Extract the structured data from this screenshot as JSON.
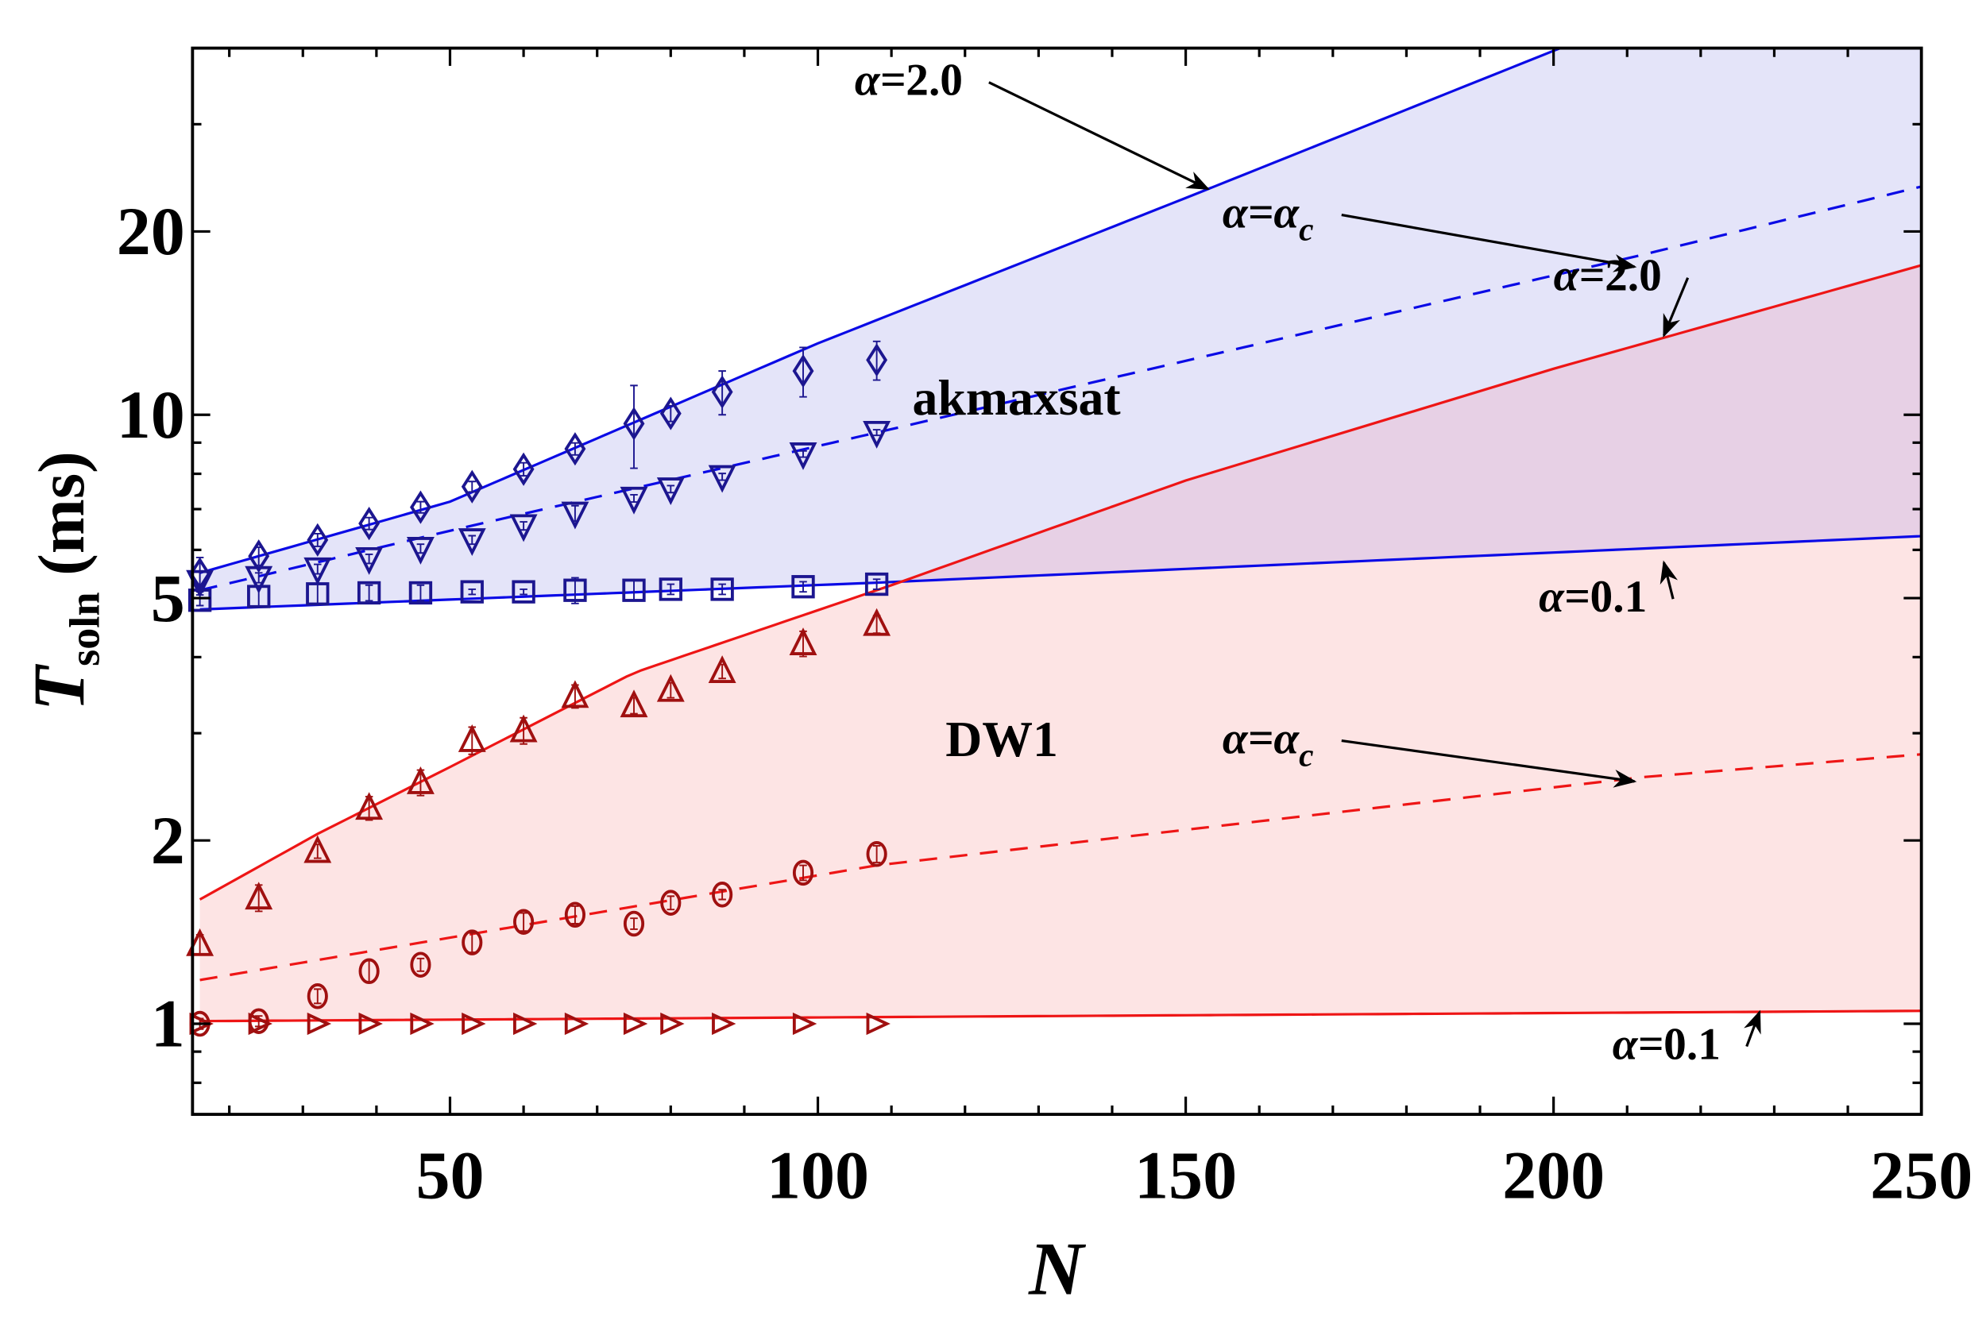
{
  "chart_data": {
    "type": "scatter",
    "xlabel": "N",
    "ylabel_main": "T",
    "ylabel_sub": "soln",
    "ylabel_unit": " (ms)",
    "xlim": [
      15,
      250
    ],
    "ylim": [
      0.71,
      40
    ],
    "yscale": "log",
    "xticks": [
      50,
      100,
      150,
      200,
      250
    ],
    "yticks": [
      1,
      2,
      5,
      10,
      20
    ],
    "grid": false,
    "colors": {
      "akmaxsat_line": "#0a0ae6",
      "akmaxsat_marker": "#1c1690",
      "akmaxsat_fill": "#e4e4f9",
      "dw1_line": "#ee1515",
      "dw1_marker": "#a01010",
      "dw1_fill": "#fde4e4",
      "overlap_fill": "#e7d0e5"
    },
    "region_labels": [
      {
        "text": "akmaxsat",
        "N": 127,
        "T": 10.0
      },
      {
        "text": "DW1",
        "N": 125,
        "T": 2.75
      }
    ],
    "series": [
      {
        "group": "akmaxsat",
        "marker": "diamond",
        "alpha": "2.0",
        "x": [
          16,
          24,
          32,
          39,
          46,
          53,
          60,
          67,
          75,
          80,
          87,
          98,
          108
        ],
        "y": [
          5.48,
          5.86,
          6.23,
          6.63,
          7.05,
          7.62,
          8.14,
          8.79,
          9.67,
          10.05,
          10.9,
          11.8,
          12.3
        ],
        "err": [
          0.35,
          0.2,
          0.15,
          0.15,
          0.15,
          0.15,
          0.2,
          0.2,
          1.5,
          0.3,
          0.9,
          1.1,
          0.9
        ]
      },
      {
        "group": "akmaxsat",
        "marker": "triangle-down",
        "alpha": "alpha_c",
        "x": [
          16,
          24,
          32,
          39,
          46,
          53,
          60,
          67,
          75,
          80,
          87,
          98,
          108
        ],
        "y": [
          5.32,
          5.4,
          5.58,
          5.8,
          6.03,
          6.23,
          6.57,
          6.89,
          7.29,
          7.55,
          7.91,
          8.62,
          9.35
        ],
        "err": [
          0.2,
          0.1,
          0.1,
          0.1,
          0.1,
          0.1,
          0.1,
          0.2,
          0.1,
          0.1,
          0.1,
          0.1,
          0.1
        ]
      },
      {
        "group": "akmaxsat",
        "marker": "square",
        "alpha": "0.1",
        "x": [
          16,
          24,
          32,
          39,
          46,
          53,
          60,
          67,
          75,
          80,
          87,
          98,
          108
        ],
        "y": [
          4.96,
          5.03,
          5.08,
          5.1,
          5.1,
          5.12,
          5.12,
          5.15,
          5.15,
          5.17,
          5.17,
          5.22,
          5.27
        ],
        "err": [
          0.1,
          0.2,
          0.2,
          0.15,
          0.15,
          0.05,
          0.05,
          0.25,
          0.2,
          0.1,
          0.1,
          0.1,
          0.1
        ]
      },
      {
        "group": "DW1",
        "marker": "triangle-up",
        "alpha": "2.0",
        "x": [
          16,
          24,
          32,
          39,
          46,
          53,
          60,
          67,
          75,
          80,
          87,
          98,
          108
        ],
        "y": [
          1.35,
          1.61,
          1.92,
          2.26,
          2.49,
          2.92,
          3.03,
          3.45,
          3.33,
          3.53,
          3.79,
          4.21,
          4.53
        ],
        "err": [
          0.05,
          0.08,
          0.05,
          0.1,
          0.12,
          0.15,
          0.15,
          0.15,
          0.1,
          0.1,
          0.1,
          0.2,
          0.15
        ]
      },
      {
        "group": "DW1",
        "marker": "circle",
        "alpha": "alpha_c",
        "x": [
          16,
          24,
          32,
          39,
          46,
          53,
          60,
          67,
          75,
          80,
          87,
          98,
          108
        ],
        "y": [
          1.0,
          1.01,
          1.11,
          1.22,
          1.25,
          1.36,
          1.47,
          1.51,
          1.46,
          1.58,
          1.63,
          1.77,
          1.9
        ],
        "err": [
          0.02,
          0.02,
          0.03,
          0.05,
          0.03,
          0.05,
          0.05,
          0.05,
          0.03,
          0.04,
          0.03,
          0.05,
          0.06
        ]
      },
      {
        "group": "DW1",
        "marker": "triangle-right",
        "alpha": "0.1",
        "x": [
          16,
          24,
          32,
          39,
          46,
          53,
          60,
          67,
          75,
          80,
          87,
          98,
          108
        ],
        "y": [
          1.0,
          1.0,
          1.0,
          1.0,
          1.0,
          1.0,
          1.0,
          1.0,
          1.0,
          1.0,
          1.0,
          1.0,
          1.0
        ],
        "err": [
          0,
          0,
          0,
          0,
          0,
          0,
          0,
          0,
          0,
          0,
          0,
          0,
          0
        ]
      }
    ],
    "fits": [
      {
        "group": "akmaxsat",
        "alpha": "2.0",
        "style": "solid",
        "points": [
          [
            16,
            5.5
          ],
          [
            50,
            7.2
          ],
          [
            100,
            13.1
          ],
          [
            150,
            22.7
          ],
          [
            200,
            39.6
          ],
          [
            250,
            68
          ]
        ]
      },
      {
        "group": "akmaxsat",
        "alpha": "alpha_c",
        "style": "dashed",
        "points": [
          [
            16,
            5.15
          ],
          [
            50,
            6.45
          ],
          [
            108,
            9.35
          ],
          [
            212,
            18.3
          ],
          [
            250,
            23.7
          ]
        ]
      },
      {
        "group": "akmaxsat",
        "alpha": "0.1",
        "style": "solid",
        "points": [
          [
            16,
            4.79
          ],
          [
            108,
            5.3
          ],
          [
            250,
            6.32
          ]
        ]
      },
      {
        "group": "DW1",
        "alpha": "2.0",
        "style": "solid",
        "points": [
          [
            16,
            1.6
          ],
          [
            32,
            2.05
          ],
          [
            50,
            2.64
          ],
          [
            75,
            3.77
          ],
          [
            110,
            5.25
          ],
          [
            150,
            7.8
          ],
          [
            200,
            11.9
          ],
          [
            250,
            17.6
          ]
        ]
      },
      {
        "group": "DW1",
        "alpha": "alpha_c",
        "style": "dashed",
        "points": [
          [
            16,
            1.18
          ],
          [
            108,
            1.82
          ],
          [
            212,
            2.54
          ],
          [
            250,
            2.77
          ]
        ]
      },
      {
        "group": "DW1",
        "alpha": "0.1",
        "style": "solid",
        "points": [
          [
            16,
            1.01
          ],
          [
            250,
            1.05
          ]
        ]
      }
    ],
    "annotations": [
      {
        "prefix": "α=",
        "value": "2.0",
        "sub": "",
        "text_at": [
          105,
          33.5
        ],
        "arrow_to": [
          153,
          23.5
        ]
      },
      {
        "prefix": "α=",
        "value": "α",
        "sub": "c",
        "text_at": [
          155,
          20.3
        ],
        "arrow_to": [
          211,
          17.5
        ]
      },
      {
        "prefix": "α=",
        "value": "2.0",
        "sub": "",
        "text_at": [
          200,
          16.0
        ],
        "arrow_to": [
          215,
          13.5
        ]
      },
      {
        "prefix": "α=",
        "value": "0.1",
        "sub": "",
        "text_at": [
          198,
          4.75
        ],
        "arrow_to": [
          215,
          5.72
        ]
      },
      {
        "prefix": "α=",
        "value": "α",
        "sub": "c",
        "text_at": [
          155,
          2.78
        ],
        "arrow_to": [
          211,
          2.5
        ]
      },
      {
        "prefix": "α=",
        "value": "0.1",
        "sub": "",
        "text_at": [
          208,
          0.875
        ],
        "arrow_to": [
          228,
          1.045
        ]
      }
    ]
  }
}
